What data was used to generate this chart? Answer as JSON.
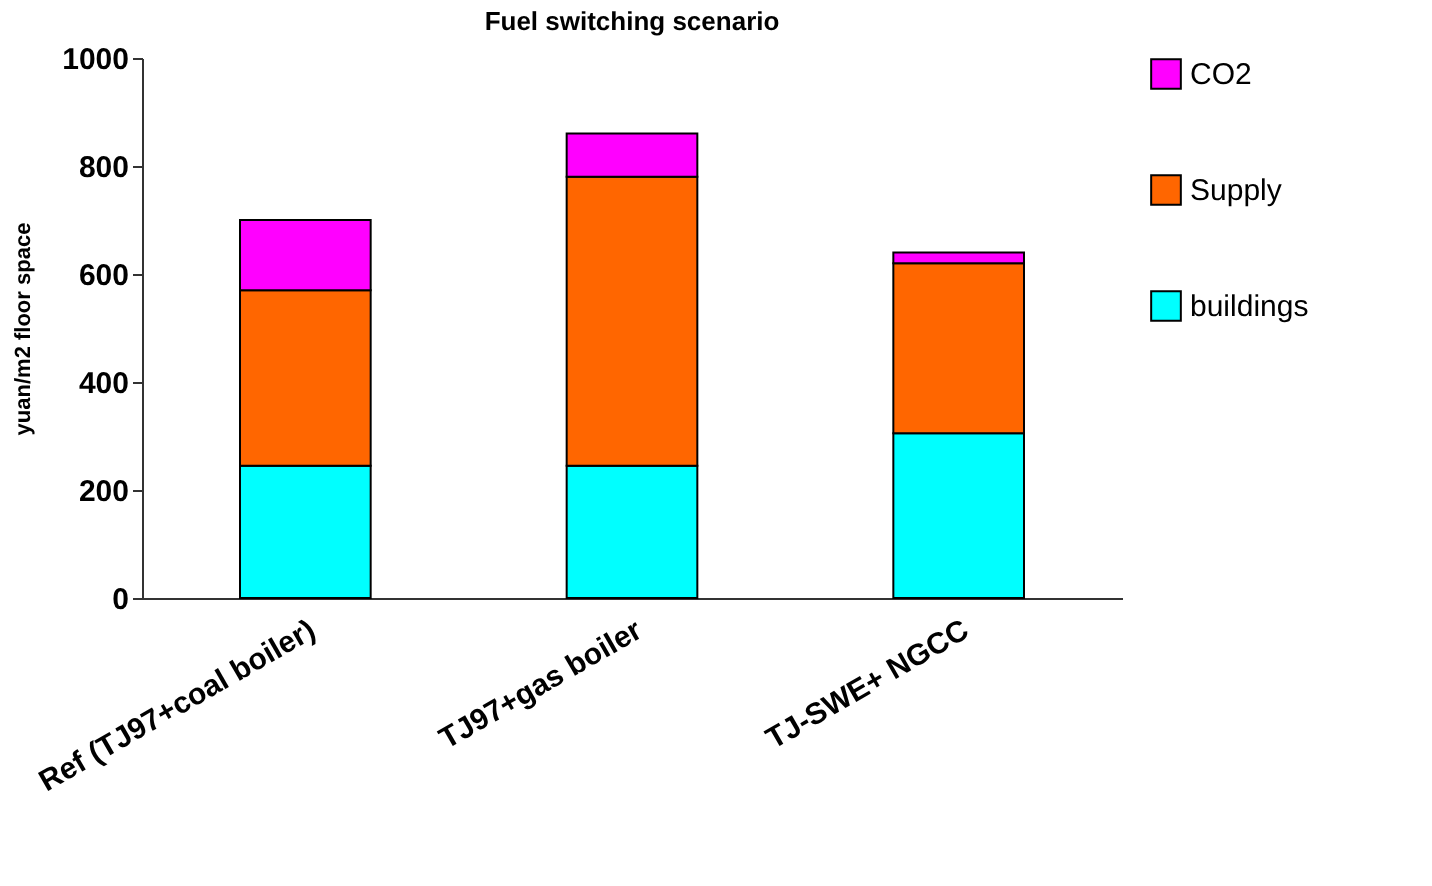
{
  "chart_data": {
    "type": "bar",
    "title": "Fuel switching scenario",
    "ylabel": "yuan/m2 floor space",
    "categories": [
      "Ref (TJ97+coal boiler)",
      "TJ97+gas boiler",
      "TJ-SWE+ NGCC"
    ],
    "stacked": true,
    "series": [
      {
        "name": "buildings",
        "color": "#00ffff",
        "values": [
          245,
          245,
          305
        ]
      },
      {
        "name": "Supply",
        "color": "#ff6600",
        "values": [
          325,
          535,
          315
        ]
      },
      {
        "name": "CO2",
        "color": "#ff00ff",
        "values": [
          130,
          80,
          20
        ]
      }
    ],
    "ylim": [
      0,
      1000
    ],
    "yticks": [
      0,
      200,
      400,
      600,
      800,
      1000
    ],
    "grid": false,
    "legend": "right"
  }
}
